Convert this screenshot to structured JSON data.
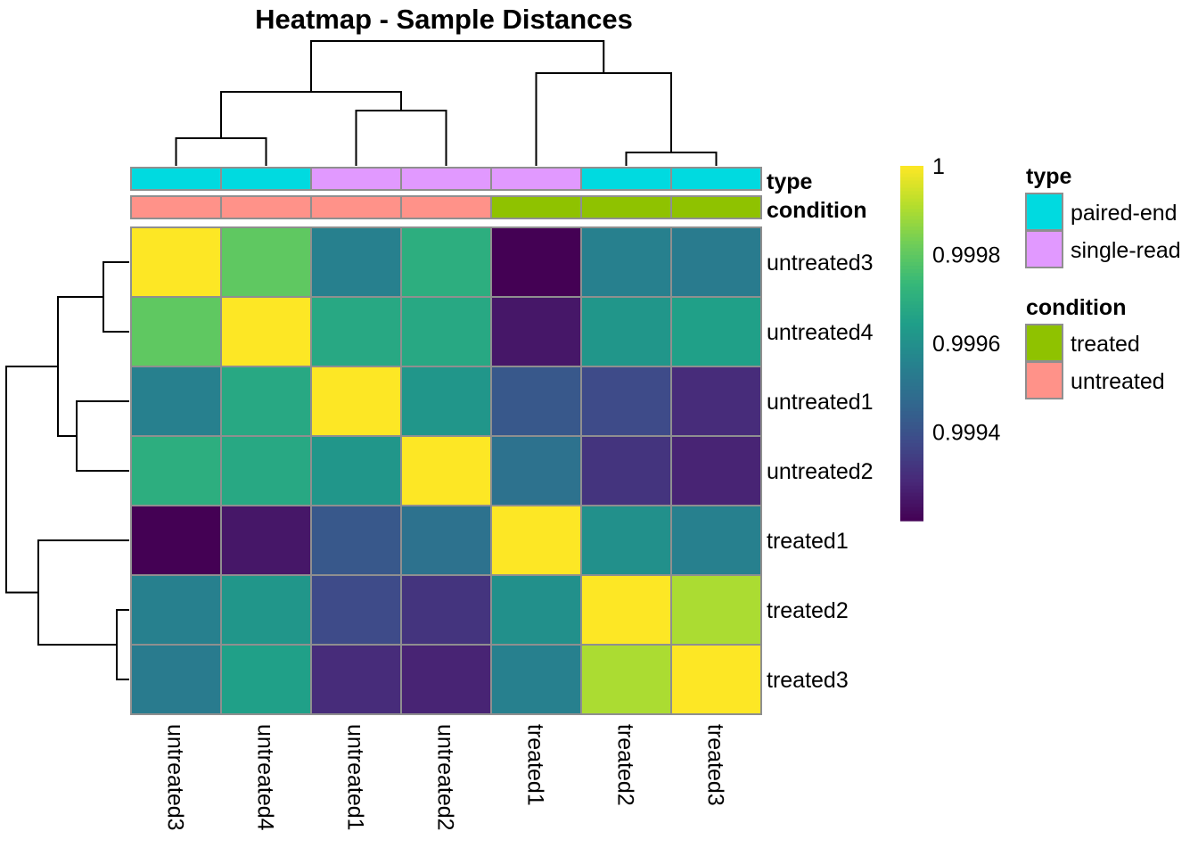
{
  "chart_data": {
    "type": "heatmap",
    "title": "Heatmap - Sample Distances",
    "samples": [
      "untreated3",
      "untreated4",
      "untreated1",
      "untreated2",
      "treated1",
      "treated2",
      "treated3"
    ],
    "matrix": [
      [
        1.0,
        0.9998,
        0.99955,
        0.9997,
        0.9992,
        0.99955,
        0.99953
      ],
      [
        0.9998,
        1.0,
        0.99968,
        0.99968,
        0.99925,
        0.99962,
        0.99965
      ],
      [
        0.99955,
        0.99968,
        1.0,
        0.99962,
        0.99942,
        0.99938,
        0.9993
      ],
      [
        0.9997,
        0.99968,
        0.99962,
        1.0,
        0.9995,
        0.99932,
        0.99928
      ],
      [
        0.9992,
        0.99925,
        0.99942,
        0.9995,
        1.0,
        0.9996,
        0.99955
      ],
      [
        0.99955,
        0.99962,
        0.99938,
        0.99932,
        0.9996,
        1.0,
        0.9999
      ],
      [
        0.99953,
        0.99965,
        0.9993,
        0.99928,
        0.99955,
        0.9999,
        1.0
      ]
    ],
    "annotations": {
      "type": [
        "paired-end",
        "paired-end",
        "single-read",
        "single-read",
        "single-read",
        "paired-end",
        "paired-end"
      ],
      "condition": [
        "untreated",
        "untreated",
        "untreated",
        "untreated",
        "treated",
        "treated",
        "treated"
      ]
    },
    "annotation_labels": [
      "type",
      "condition"
    ],
    "colorbar": {
      "range": [
        0.9992,
        1.0
      ],
      "ticks": [
        {
          "value": 0.9994,
          "label": "0.9994"
        },
        {
          "value": 0.9996,
          "label": "0.9996"
        },
        {
          "value": 0.9998,
          "label": "0.9998"
        },
        {
          "value": 1.0,
          "label": "1"
        }
      ],
      "palette": [
        "#440154",
        "#482878",
        "#3E4A89",
        "#31688E",
        "#26828E",
        "#1F9E89",
        "#35B779",
        "#6DCD59",
        "#B4DE2C",
        "#FDE725"
      ]
    },
    "legend": {
      "type": {
        "title": "type",
        "items": [
          {
            "label": "paired-end",
            "color": "#00DAE0"
          },
          {
            "label": "single-read",
            "color": "#E199FF"
          }
        ]
      },
      "condition": {
        "title": "condition",
        "items": [
          {
            "label": "treated",
            "color": "#8FC200"
          },
          {
            "label": "untreated",
            "color": "#FF9289"
          }
        ]
      }
    }
  }
}
